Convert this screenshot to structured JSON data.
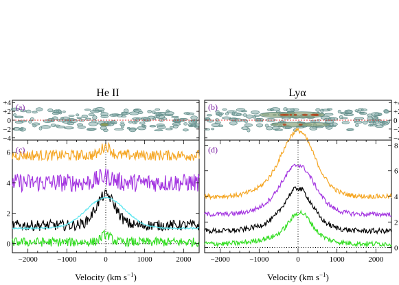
{
  "titles": {
    "left": "He II",
    "right": "Lyα"
  },
  "xlabel_text": "Velocity (km s",
  "xlabel_exp": "−1",
  "xlabel_close": ")",
  "colors": {
    "orange": "#f5a623",
    "purple": "#a335e0",
    "black": "#000000",
    "cyan": "#5ae6f0",
    "green": "#33dd22",
    "zero_line": "#ee3333",
    "contour": "#5f8a86",
    "contour_fill": "#7fa8a6",
    "letter": "#7a1fa2"
  },
  "chart_data": [
    {
      "panel": "(a)",
      "type": "heatmap",
      "description_visible": "2D spectrum contour",
      "ylim": [
        -4.5,
        4.5
      ],
      "yticks": [
        "+4",
        "+2",
        "0",
        "−2",
        "−4"
      ],
      "xlim": [
        -2400,
        2400
      ]
    },
    {
      "panel": "(b)",
      "type": "heatmap",
      "ylim": [
        -4.5,
        4.5
      ],
      "yticks": [
        "+4",
        "+2",
        "0",
        "−2",
        "−4"
      ],
      "xlim": [
        -2400,
        2400
      ]
    },
    {
      "panel": "(c)",
      "type": "line",
      "xlim": [
        -2400,
        2400
      ],
      "ylim": [
        -0.6,
        6.8
      ],
      "xticks": [
        -2000,
        -1000,
        0,
        1000,
        2000
      ],
      "yticks": [
        0,
        2,
        4,
        6
      ],
      "series": [
        {
          "color": "orange",
          "base": 5.8,
          "noise": 0.35,
          "peak": 0.6,
          "width": 120,
          "center": 0
        },
        {
          "color": "purple",
          "base": 4.0,
          "noise": 0.6,
          "peak": 0.4,
          "width": 200,
          "center": 0
        },
        {
          "color": "black",
          "base": 1.2,
          "noise": 0.35,
          "peak": 2.0,
          "width": 250,
          "center": 0
        },
        {
          "color": "cyan",
          "base": 1.0,
          "noise": 0.05,
          "peak": 2.0,
          "width": 500,
          "center": 0
        },
        {
          "color": "green",
          "base": 0.1,
          "noise": 0.3,
          "peak": 0.5,
          "width": 120,
          "center": 0
        }
      ]
    },
    {
      "panel": "(d)",
      "type": "line",
      "xlim": [
        -2400,
        2400
      ],
      "ylim": [
        -0.4,
        8.4
      ],
      "xticks": [
        -2000,
        -1000,
        0,
        1000,
        2000
      ],
      "yticks": [
        0,
        2,
        4,
        6,
        8
      ],
      "series": [
        {
          "color": "orange",
          "base": 4.0,
          "noise": 0.18,
          "peak": 4.0,
          "width": 380,
          "center": 0
        },
        {
          "color": "purple",
          "base": 2.6,
          "noise": 0.18,
          "peak": 3.0,
          "width": 380,
          "center": 0
        },
        {
          "color": "black",
          "base": 1.3,
          "noise": 0.2,
          "peak": 2.6,
          "width": 320,
          "center": 0
        },
        {
          "color": "green",
          "base": 0.3,
          "noise": 0.2,
          "peak": 1.9,
          "width": 280,
          "center": 50
        }
      ]
    }
  ]
}
